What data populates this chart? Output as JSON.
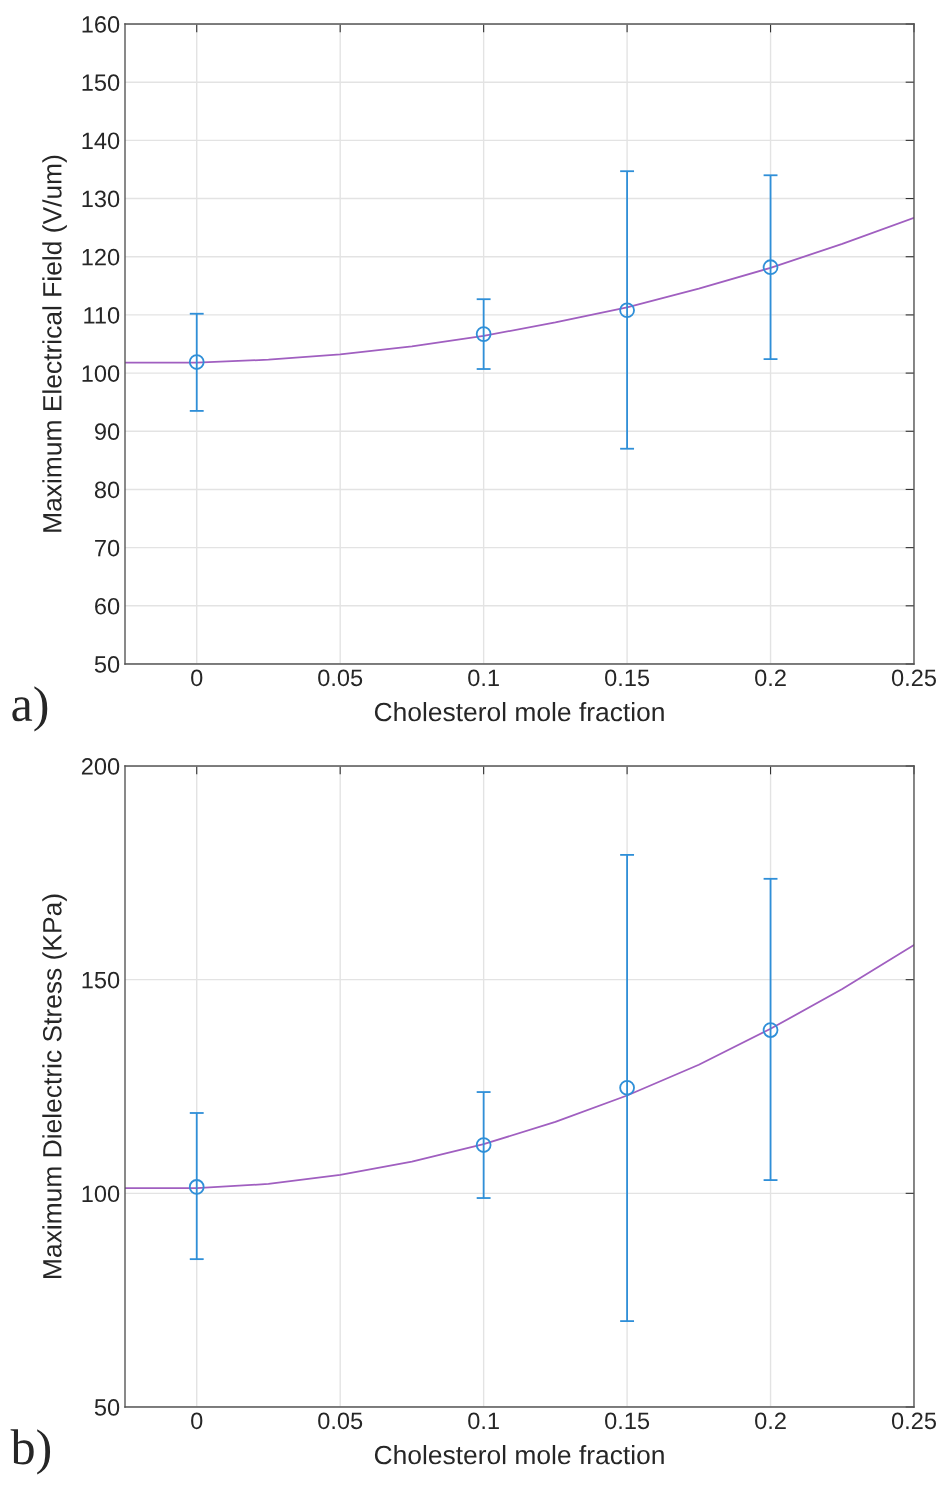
{
  "chart_data": [
    {
      "type": "scatter",
      "xlabel": "Cholesterol mole fraction",
      "ylabel": "Maximum Electrical Field (V/um)",
      "annotations": [
        "a)"
      ],
      "xlim": [
        -0.025,
        0.25
      ],
      "xticks": [
        0,
        0.05,
        0.1,
        0.15,
        0.2,
        0.25
      ],
      "ylim": [
        50,
        160
      ],
      "yticks": [
        50,
        60,
        70,
        80,
        90,
        100,
        110,
        120,
        130,
        140,
        150,
        160
      ],
      "grid": true,
      "series": [
        {
          "type": "scatter",
          "color": "#2f8fd8",
          "marker": "circle",
          "x": [
            0,
            0.1,
            0.15,
            0.2
          ],
          "values": [
            101.9,
            106.7,
            110.8,
            118.2
          ],
          "errors": [
            [
              93.5,
              110.2
            ],
            [
              100.7,
              112.7
            ],
            [
              87.0,
              134.7
            ],
            [
              102.4,
              134.0
            ]
          ]
        },
        {
          "type": "line",
          "color": "#a05fc0",
          "x": [
            -0.025,
            0,
            0.025,
            0.05,
            0.075,
            0.1,
            0.125,
            0.15,
            0.175,
            0.2,
            0.225,
            0.25
          ],
          "values": [
            101.8,
            101.8,
            102.3,
            103.2,
            104.6,
            106.4,
            108.7,
            111.3,
            114.5,
            118.1,
            122.2,
            126.7
          ]
        }
      ]
    },
    {
      "type": "scatter",
      "xlabel": "Cholesterol mole fraction",
      "ylabel": "Maximum Dielectric Stress (KPa)",
      "annotations": [
        "b)"
      ],
      "xlim": [
        -0.025,
        0.25
      ],
      "xticks": [
        0,
        0.05,
        0.1,
        0.15,
        0.2,
        0.25
      ],
      "ylim": [
        50,
        200
      ],
      "yticks": [
        50,
        100,
        150,
        200
      ],
      "grid": true,
      "series": [
        {
          "type": "scatter",
          "color": "#2f8fd8",
          "marker": "circle",
          "x": [
            0,
            0.1,
            0.15,
            0.2
          ],
          "values": [
            101.5,
            111.3,
            124.7,
            138.2
          ],
          "errors": [
            [
              84.6,
              118.8
            ],
            [
              98.9,
              123.7
            ],
            [
              70.1,
              179.2
            ],
            [
              103.1,
              173.6
            ]
          ]
        },
        {
          "type": "line",
          "color": "#a05fc0",
          "x": [
            -0.025,
            0,
            0.025,
            0.05,
            0.075,
            0.1,
            0.125,
            0.15,
            0.175,
            0.2,
            0.225,
            0.25
          ],
          "values": [
            101.2,
            101.2,
            102.2,
            104.3,
            107.4,
            111.5,
            116.7,
            122.9,
            130.1,
            138.5,
            147.8,
            158.1
          ]
        }
      ]
    }
  ]
}
